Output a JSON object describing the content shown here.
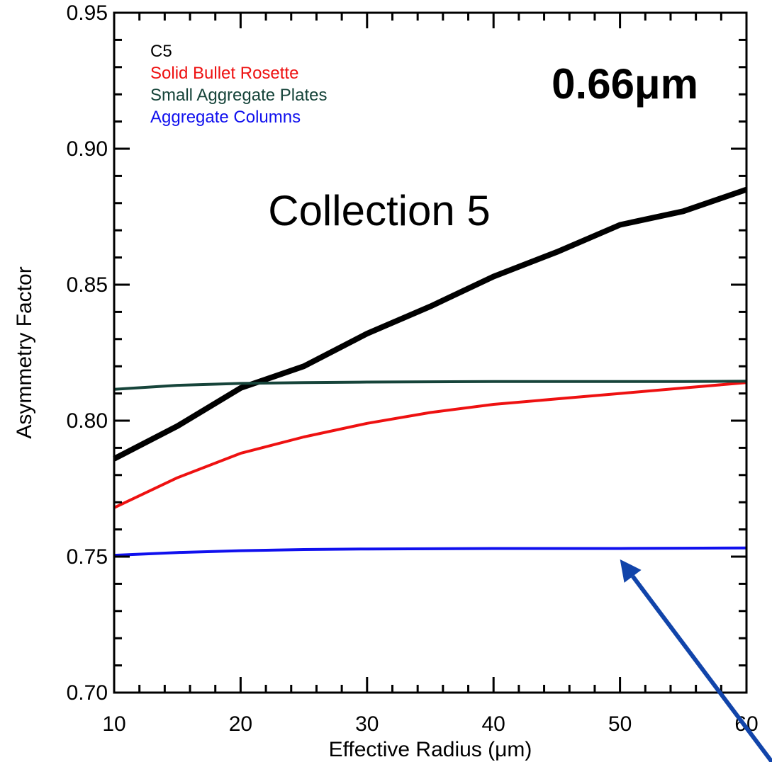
{
  "chart_data": {
    "type": "line",
    "xlabel": "Effective Radius (μm)",
    "ylabel": "Asymmetry Factor",
    "xlim": [
      10,
      60
    ],
    "ylim": [
      0.7,
      0.95
    ],
    "xticks": [
      10,
      20,
      30,
      40,
      50,
      60
    ],
    "xtick_labels": [
      "10",
      "20",
      "30",
      "40",
      "50",
      "60"
    ],
    "yticks": [
      0.7,
      0.75,
      0.8,
      0.85,
      0.9,
      0.95
    ],
    "ytick_labels": [
      "0.70",
      "0.75",
      "0.80",
      "0.85",
      "0.90",
      "0.95"
    ],
    "annotations": {
      "wavelength": "0.66μm",
      "collection": "Collection 5"
    },
    "legend_position": "top-left",
    "series": [
      {
        "name": "C5",
        "color": "#000000",
        "x": [
          10,
          15,
          20,
          25,
          30,
          35,
          40,
          45,
          50,
          55,
          60
        ],
        "y": [
          0.786,
          0.798,
          0.812,
          0.82,
          0.832,
          0.842,
          0.853,
          0.862,
          0.872,
          0.877,
          0.885
        ]
      },
      {
        "name": "Solid Bullet Rosette",
        "color": "#ee1111",
        "x": [
          10,
          15,
          20,
          25,
          30,
          35,
          40,
          45,
          50,
          55,
          60
        ],
        "y": [
          0.768,
          0.779,
          0.788,
          0.794,
          0.799,
          0.803,
          0.806,
          0.808,
          0.81,
          0.812,
          0.814
        ]
      },
      {
        "name": "Small Aggregate Plates",
        "color": "#16443a",
        "x": [
          10,
          15,
          20,
          25,
          30,
          35,
          40,
          45,
          50,
          55,
          60
        ],
        "y": [
          0.8115,
          0.813,
          0.8137,
          0.814,
          0.8142,
          0.8143,
          0.8144,
          0.8144,
          0.8144,
          0.8144,
          0.8145
        ]
      },
      {
        "name": "Aggregate Columns",
        "color": "#1010ee",
        "x": [
          10,
          15,
          20,
          25,
          30,
          35,
          40,
          45,
          50,
          55,
          60
        ],
        "y": [
          0.7505,
          0.7515,
          0.7522,
          0.7526,
          0.7528,
          0.7529,
          0.753,
          0.753,
          0.753,
          0.7531,
          0.7532
        ]
      }
    ],
    "arrow_color": "#1144aa",
    "arrow_target": {
      "x": 50,
      "y": 0.749
    }
  }
}
